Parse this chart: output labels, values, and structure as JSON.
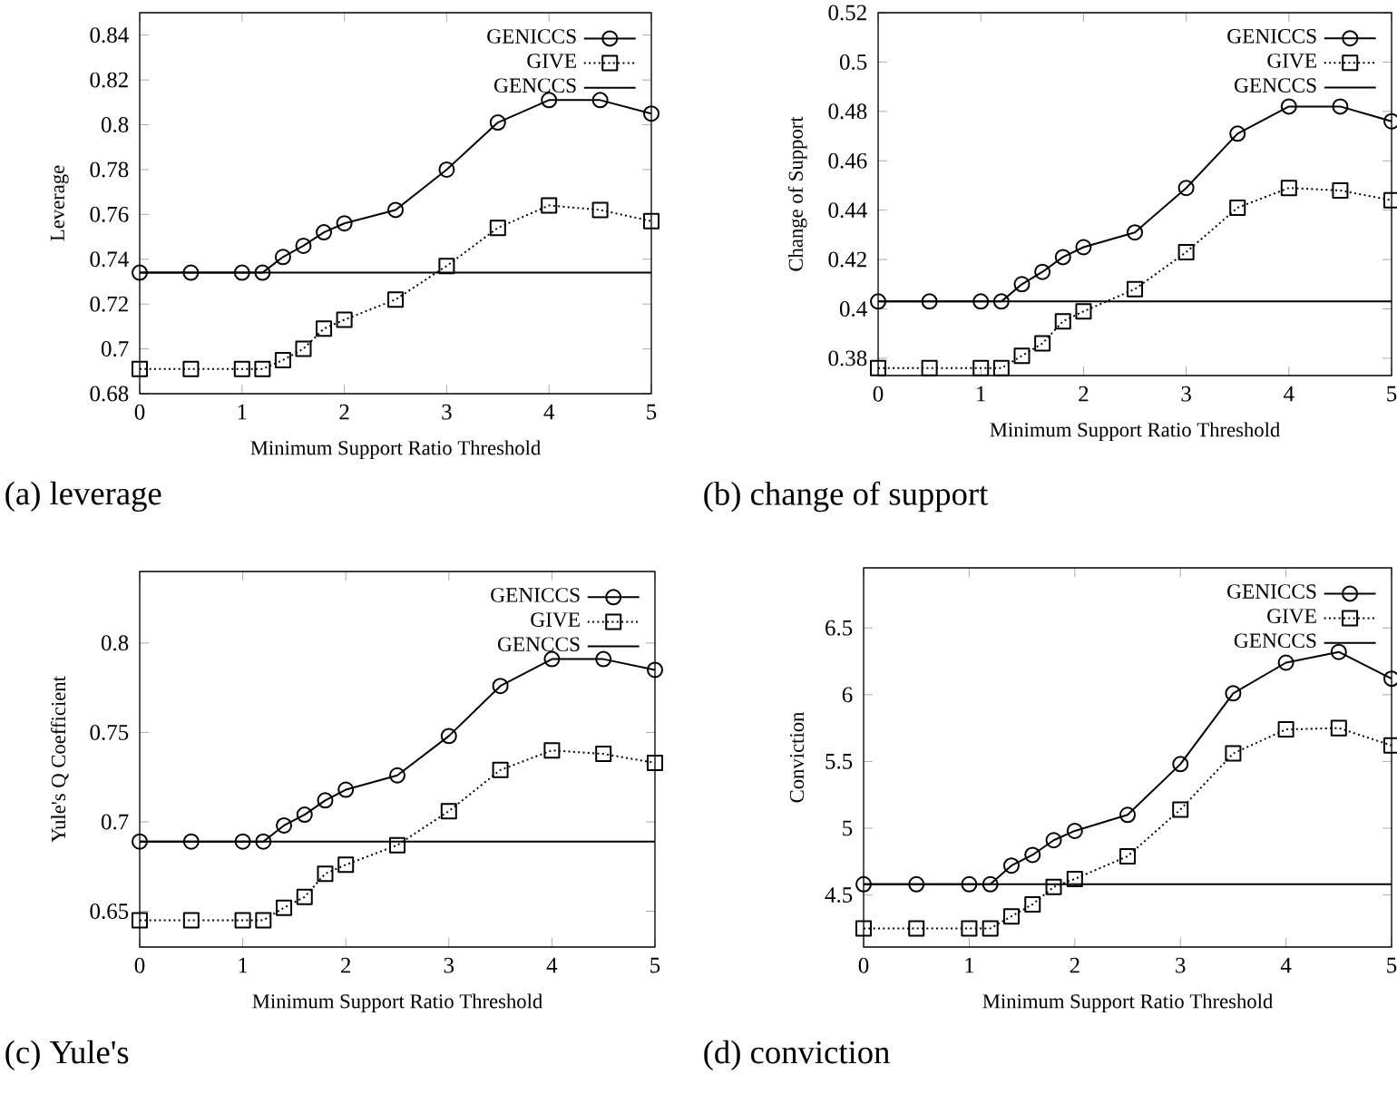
{
  "chart_data": [
    {
      "type": "line",
      "xlabel": "Minimum Support Ratio Threshold",
      "ylabel": "Leverage",
      "annotations": [
        "(a) leverage"
      ],
      "legend": "top right",
      "xlim": [
        0,
        5
      ],
      "ylim": [
        0.68,
        0.85
      ],
      "xticks": [
        0,
        1,
        2,
        3,
        4,
        5
      ],
      "yticks": [
        0.68,
        0.7,
        0.72,
        0.74,
        0.76,
        0.78,
        0.8,
        0.82,
        0.84
      ],
      "series": [
        {
          "name": "GENICCS",
          "color": "#000000",
          "marker": "circle",
          "line_style": "solid",
          "x": [
            0,
            0.5,
            1,
            1.2,
            1.4,
            1.6,
            1.8,
            2,
            2.5,
            3,
            3.5,
            4,
            4.5,
            5
          ],
          "values": [
            0.734,
            0.734,
            0.734,
            0.734,
            0.741,
            0.746,
            0.752,
            0.756,
            0.762,
            0.78,
            0.801,
            0.811,
            0.811,
            0.805
          ]
        },
        {
          "name": "GIVE",
          "color": "#000000",
          "marker": "square",
          "line_style": "dotted",
          "x": [
            0,
            0.5,
            1,
            1.2,
            1.4,
            1.6,
            1.8,
            2,
            2.5,
            3,
            3.5,
            4,
            4.5,
            5
          ],
          "values": [
            0.691,
            0.691,
            0.691,
            0.691,
            0.695,
            0.7,
            0.709,
            0.713,
            0.722,
            0.737,
            0.754,
            0.764,
            0.762,
            0.757
          ]
        },
        {
          "name": "GENCCS",
          "color": "#000000",
          "marker": "none",
          "line_style": "solid",
          "x": [
            0,
            5
          ],
          "values": [
            0.734,
            0.734
          ]
        }
      ]
    },
    {
      "type": "line",
      "xlabel": "Minimum Support Ratio Threshold",
      "ylabel": "Change of Support",
      "annotations": [
        "(b) change of support"
      ],
      "legend": "top right",
      "xlim": [
        0,
        5
      ],
      "ylim": [
        0.373,
        0.52
      ],
      "xticks": [
        0,
        1,
        2,
        3,
        4,
        5
      ],
      "yticks": [
        0.38,
        0.4,
        0.42,
        0.44,
        0.46,
        0.48,
        0.5,
        0.52
      ],
      "series": [
        {
          "name": "GENICCS",
          "color": "#000000",
          "marker": "circle",
          "line_style": "solid",
          "x": [
            0,
            0.5,
            1,
            1.2,
            1.4,
            1.6,
            1.8,
            2,
            2.5,
            3,
            3.5,
            4,
            4.5,
            5
          ],
          "values": [
            0.403,
            0.403,
            0.403,
            0.403,
            0.41,
            0.415,
            0.421,
            0.425,
            0.431,
            0.449,
            0.471,
            0.482,
            0.482,
            0.476
          ]
        },
        {
          "name": "GIVE",
          "color": "#000000",
          "marker": "square",
          "line_style": "dotted",
          "x": [
            0,
            0.5,
            1,
            1.2,
            1.4,
            1.6,
            1.8,
            2,
            2.5,
            3,
            3.5,
            4,
            4.5,
            5
          ],
          "values": [
            0.376,
            0.376,
            0.376,
            0.376,
            0.381,
            0.386,
            0.395,
            0.399,
            0.408,
            0.423,
            0.441,
            0.449,
            0.448,
            0.444
          ]
        },
        {
          "name": "GENCCS",
          "color": "#000000",
          "marker": "none",
          "line_style": "solid",
          "x": [
            0,
            5
          ],
          "values": [
            0.403,
            0.403
          ]
        }
      ]
    },
    {
      "type": "line",
      "xlabel": "Minimum Support Ratio Threshold",
      "ylabel": "Yule's Q Coefficient",
      "annotations": [
        "(c) Yule's"
      ],
      "legend": "top right",
      "xlim": [
        0,
        5
      ],
      "ylim": [
        0.63,
        0.84
      ],
      "xticks": [
        0,
        1,
        2,
        3,
        4,
        5
      ],
      "yticks": [
        0.65,
        0.7,
        0.75,
        0.8
      ],
      "series": [
        {
          "name": "GENICCS",
          "color": "#000000",
          "marker": "circle",
          "line_style": "solid",
          "x": [
            0,
            0.5,
            1,
            1.2,
            1.4,
            1.6,
            1.8,
            2,
            2.5,
            3,
            3.5,
            4,
            4.5,
            5
          ],
          "values": [
            0.689,
            0.689,
            0.689,
            0.689,
            0.698,
            0.704,
            0.712,
            0.718,
            0.726,
            0.748,
            0.776,
            0.791,
            0.791,
            0.785
          ]
        },
        {
          "name": "GIVE",
          "color": "#000000",
          "marker": "square",
          "line_style": "dotted",
          "x": [
            0,
            0.5,
            1,
            1.2,
            1.4,
            1.6,
            1.8,
            2,
            2.5,
            3,
            3.5,
            4,
            4.5,
            5
          ],
          "values": [
            0.645,
            0.645,
            0.645,
            0.645,
            0.652,
            0.658,
            0.671,
            0.676,
            0.687,
            0.706,
            0.729,
            0.74,
            0.738,
            0.733
          ]
        },
        {
          "name": "GENCCS",
          "color": "#000000",
          "marker": "none",
          "line_style": "solid",
          "x": [
            0,
            5
          ],
          "values": [
            0.689,
            0.689
          ]
        }
      ]
    },
    {
      "type": "line",
      "xlabel": "Minimum Support Ratio Threshold",
      "ylabel": "Conviction",
      "annotations": [
        "(d) conviction"
      ],
      "legend": "top right",
      "xlim": [
        0,
        5
      ],
      "ylim": [
        4.11,
        6.95
      ],
      "xticks": [
        0,
        1,
        2,
        3,
        4,
        5
      ],
      "yticks": [
        4.5,
        5,
        5.5,
        6,
        6.5
      ],
      "series": [
        {
          "name": "GENICCS",
          "color": "#000000",
          "marker": "circle",
          "line_style": "solid",
          "x": [
            0,
            0.5,
            1,
            1.2,
            1.4,
            1.6,
            1.8,
            2,
            2.5,
            3,
            3.5,
            4,
            4.5,
            5
          ],
          "values": [
            4.58,
            4.58,
            4.58,
            4.58,
            4.72,
            4.8,
            4.91,
            4.98,
            5.1,
            5.48,
            6.01,
            6.24,
            6.32,
            6.12
          ]
        },
        {
          "name": "GIVE",
          "color": "#000000",
          "marker": "square",
          "line_style": "dotted",
          "x": [
            0,
            0.5,
            1,
            1.2,
            1.4,
            1.6,
            1.8,
            2,
            2.5,
            3,
            3.5,
            4,
            4.5,
            5
          ],
          "values": [
            4.25,
            4.25,
            4.25,
            4.25,
            4.34,
            4.43,
            4.56,
            4.62,
            4.79,
            5.14,
            5.56,
            5.74,
            5.75,
            5.62
          ]
        },
        {
          "name": "GENCCS",
          "color": "#000000",
          "marker": "none",
          "line_style": "solid",
          "x": [
            0,
            5
          ],
          "values": [
            4.58,
            4.58
          ]
        }
      ]
    }
  ]
}
